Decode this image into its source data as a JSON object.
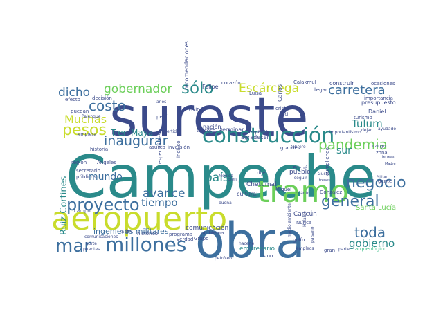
{
  "palette": {
    "navy": "#3b4a8a",
    "teal": "#2a8a8a",
    "lime": "#c9dc2c",
    "green": "#6ccf5a",
    "mint": "#3fbf8a",
    "purple": "#46307a",
    "blue": "#3d6f9e",
    "background": "#ffffff"
  },
  "words": [
    "Campeche",
    "sureste",
    "obra",
    "aeropuerto",
    "tramo",
    "construcción",
    "millones",
    "mar",
    "proyecto",
    "pesos",
    "costo",
    "dicho",
    "sólo",
    "gobernador",
    "Escárcega",
    "carretera",
    "pandemia",
    "Tulum",
    "Muchas",
    "inaugurar",
    "Tren Maya",
    "general",
    "negocio",
    "toda",
    "gobierno",
    "mundo",
    "avance",
    "tiempo",
    "país",
    "sur",
    "Ruiz Cortines",
    "ingenieros militares",
    "comunicación",
    "cultural",
    "empresario",
    "Santa Lucía",
    "Cancún",
    "Chetumal",
    "pueblo",
    "Carlos",
    "nación",
    "importa",
    "terminar",
    "expertos",
    "vivir",
    "Felipe",
    "Luisa",
    "construir",
    "presupuesto",
    "ocasiones",
    "turismo",
    "importancia",
    "agradecer",
    "recomendaciones",
    "Calakmul",
    "llegar",
    "corazón",
    "decisión",
    "efecto",
    "Palenque",
    "región",
    "historia",
    "incluso",
    "asunto",
    "inversión",
    "especialistas",
    "públicos",
    "secretario",
    "Ángeles",
    "empresa",
    "campo",
    "norte",
    "puentes",
    "petróleo",
    "problema",
    "histórico",
    "Slim",
    "programa",
    "verdad",
    "Grupo",
    "bien",
    "buena",
    "sino",
    "empleos",
    "gran",
    "parte",
    "arqueológico",
    "golfo",
    "Nunca",
    "María",
    "cuánto",
    "dije",
    "Miguel",
    "González",
    "Edzná",
    "seguir",
    "Gusto",
    "trenes",
    "cumpliendo",
    "zona",
    "gente",
    "Daniel",
    "cargo",
    "ayudado",
    "dejar",
    "importantísimo",
    "años",
    "crisis",
    "decir",
    "ferreas",
    "Madre",
    "Militar",
    "texcoco",
    "invertido",
    "pedí",
    "puedan",
    "hacerle",
    "Hidalgo",
    "paisano",
    "medio ambiente",
    "comunicaciones",
    "grandes",
    "febrero",
    "México"
  ]
}
